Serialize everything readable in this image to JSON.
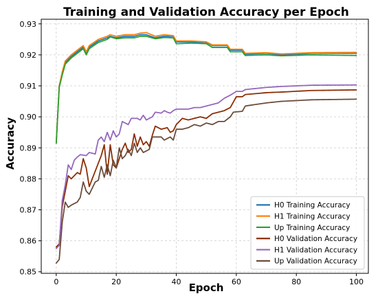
{
  "chart_data": {
    "type": "line",
    "title": "Training and Validation Accuracy per Epoch",
    "xlabel": "Epoch",
    "ylabel": "Accuracy",
    "xlim": [
      -5,
      104
    ],
    "ylim": [
      0.8495,
      0.9315
    ],
    "xticks": [
      0,
      20,
      40,
      60,
      80,
      100
    ],
    "yticks": [
      0.85,
      0.86,
      0.87,
      0.88,
      0.89,
      0.9,
      0.91,
      0.92,
      0.93
    ],
    "ytick_labels": [
      "0.85",
      "0.86",
      "0.87",
      "0.88",
      "0.89",
      "0.90",
      "0.91",
      "0.92",
      "0.93"
    ],
    "grid": true,
    "legend_position": "lower-right",
    "series": [
      {
        "name": "H0 Training Accuracy",
        "color": "#1f77b4",
        "keypoints": [
          [
            0,
            0.8915
          ],
          [
            1,
            0.91
          ],
          [
            2,
            0.914
          ],
          [
            3,
            0.9175
          ],
          [
            5,
            0.9195
          ],
          [
            7,
            0.921
          ],
          [
            9,
            0.9225
          ],
          [
            10,
            0.9205
          ],
          [
            11,
            0.9225
          ],
          [
            14,
            0.9245
          ],
          [
            17,
            0.9255
          ],
          [
            18,
            0.926
          ],
          [
            20,
            0.9255
          ],
          [
            23,
            0.926
          ],
          [
            26,
            0.926
          ],
          [
            28,
            0.9265
          ],
          [
            30,
            0.9265
          ],
          [
            33,
            0.9255
          ],
          [
            36,
            0.926
          ],
          [
            39,
            0.926
          ],
          [
            40,
            0.9242
          ],
          [
            45,
            0.9242
          ],
          [
            50,
            0.924
          ],
          [
            52,
            0.923
          ],
          [
            57,
            0.923
          ],
          [
            58,
            0.9215
          ],
          [
            62,
            0.9215
          ],
          [
            63,
            0.9202
          ],
          [
            70,
            0.9205
          ],
          [
            75,
            0.92
          ],
          [
            85,
            0.9205
          ],
          [
            100,
            0.9205
          ]
        ]
      },
      {
        "name": "H1 Training Accuracy",
        "color": "#ff7f0e",
        "keypoints": [
          [
            0,
            0.8915
          ],
          [
            1,
            0.91
          ],
          [
            2,
            0.9145
          ],
          [
            3,
            0.918
          ],
          [
            5,
            0.92
          ],
          [
            7,
            0.9215
          ],
          [
            9,
            0.923
          ],
          [
            10,
            0.921
          ],
          [
            11,
            0.923
          ],
          [
            14,
            0.925
          ],
          [
            17,
            0.926
          ],
          [
            18,
            0.9265
          ],
          [
            20,
            0.926
          ],
          [
            23,
            0.9265
          ],
          [
            26,
            0.9265
          ],
          [
            28,
            0.927
          ],
          [
            30,
            0.9272
          ],
          [
            33,
            0.926
          ],
          [
            36,
            0.9265
          ],
          [
            39,
            0.9262
          ],
          [
            40,
            0.9245
          ],
          [
            45,
            0.9245
          ],
          [
            50,
            0.9242
          ],
          [
            52,
            0.9232
          ],
          [
            57,
            0.9232
          ],
          [
            58,
            0.9218
          ],
          [
            62,
            0.9218
          ],
          [
            63,
            0.9205
          ],
          [
            70,
            0.9207
          ],
          [
            75,
            0.9203
          ],
          [
            85,
            0.9207
          ],
          [
            100,
            0.9208
          ]
        ]
      },
      {
        "name": "Up Training Accuracy",
        "color": "#2ca02c",
        "keypoints": [
          [
            0,
            0.8915
          ],
          [
            1,
            0.9095
          ],
          [
            2,
            0.9135
          ],
          [
            3,
            0.917
          ],
          [
            5,
            0.919
          ],
          [
            7,
            0.9205
          ],
          [
            9,
            0.922
          ],
          [
            10,
            0.92
          ],
          [
            11,
            0.922
          ],
          [
            14,
            0.924
          ],
          [
            17,
            0.925
          ],
          [
            18,
            0.9258
          ],
          [
            20,
            0.9252
          ],
          [
            23,
            0.9255
          ],
          [
            26,
            0.9255
          ],
          [
            28,
            0.926
          ],
          [
            30,
            0.926
          ],
          [
            33,
            0.9252
          ],
          [
            36,
            0.9256
          ],
          [
            39,
            0.9255
          ],
          [
            40,
            0.9236
          ],
          [
            45,
            0.9238
          ],
          [
            50,
            0.9236
          ],
          [
            52,
            0.9224
          ],
          [
            57,
            0.9224
          ],
          [
            58,
            0.921
          ],
          [
            62,
            0.921
          ],
          [
            63,
            0.9198
          ],
          [
            70,
            0.92
          ],
          [
            75,
            0.9197
          ],
          [
            85,
            0.92
          ],
          [
            100,
            0.9198
          ]
        ]
      },
      {
        "name": "H0 Validation Accuracy",
        "color": "#8c2d04",
        "keypoints": [
          [
            0,
            0.858
          ],
          [
            1,
            0.859
          ],
          [
            2,
            0.871
          ],
          [
            3,
            0.876
          ],
          [
            4,
            0.881
          ],
          [
            5,
            0.88
          ],
          [
            7,
            0.882
          ],
          [
            8,
            0.8815
          ],
          [
            9,
            0.8865
          ],
          [
            10,
            0.8835
          ],
          [
            11,
            0.8775
          ],
          [
            12,
            0.88
          ],
          [
            14,
            0.885
          ],
          [
            15,
            0.8875
          ],
          [
            16,
            0.891
          ],
          [
            17,
            0.8815
          ],
          [
            18,
            0.891
          ],
          [
            19,
            0.8845
          ],
          [
            20,
            0.8835
          ],
          [
            21,
            0.8865
          ],
          [
            22,
            0.8895
          ],
          [
            23,
            0.8915
          ],
          [
            24,
            0.8885
          ],
          [
            25,
            0.8895
          ],
          [
            26,
            0.8945
          ],
          [
            27,
            0.8905
          ],
          [
            28,
            0.8935
          ],
          [
            29,
            0.891
          ],
          [
            30,
            0.892
          ],
          [
            31,
            0.8905
          ],
          [
            32,
            0.894
          ],
          [
            33,
            0.897
          ],
          [
            35,
            0.896
          ],
          [
            37,
            0.8965
          ],
          [
            38,
            0.895
          ],
          [
            39,
            0.8955
          ],
          [
            40,
            0.8975
          ],
          [
            42,
            0.8995
          ],
          [
            44,
            0.899
          ],
          [
            46,
            0.8995
          ],
          [
            48,
            0.9
          ],
          [
            50,
            0.8995
          ],
          [
            52,
            0.901
          ],
          [
            54,
            0.9015
          ],
          [
            56,
            0.902
          ],
          [
            57,
            0.9025
          ],
          [
            58,
            0.903
          ],
          [
            60,
            0.9065
          ],
          [
            62,
            0.9065
          ],
          [
            63,
            0.9072
          ],
          [
            70,
            0.9078
          ],
          [
            75,
            0.908
          ],
          [
            85,
            0.9085
          ],
          [
            100,
            0.9087
          ]
        ]
      },
      {
        "name": "H1 Validation Accuracy",
        "color": "#9467bd",
        "keypoints": [
          [
            0,
            0.8575
          ],
          [
            1,
            0.8585
          ],
          [
            2,
            0.873
          ],
          [
            3,
            0.878
          ],
          [
            4,
            0.8845
          ],
          [
            5,
            0.883
          ],
          [
            6,
            0.886
          ],
          [
            7,
            0.887
          ],
          [
            8,
            0.8878
          ],
          [
            10,
            0.8875
          ],
          [
            11,
            0.8885
          ],
          [
            13,
            0.888
          ],
          [
            14,
            0.8925
          ],
          [
            15,
            0.8935
          ],
          [
            16,
            0.892
          ],
          [
            17,
            0.895
          ],
          [
            18,
            0.8925
          ],
          [
            19,
            0.8955
          ],
          [
            20,
            0.8935
          ],
          [
            21,
            0.8945
          ],
          [
            22,
            0.8985
          ],
          [
            24,
            0.8975
          ],
          [
            25,
            0.8995
          ],
          [
            27,
            0.8995
          ],
          [
            28,
            0.899
          ],
          [
            29,
            0.9005
          ],
          [
            30,
            0.899
          ],
          [
            32,
            0.9
          ],
          [
            33,
            0.9015
          ],
          [
            35,
            0.9012
          ],
          [
            36,
            0.902
          ],
          [
            37,
            0.9015
          ],
          [
            38,
            0.9012
          ],
          [
            39,
            0.902
          ],
          [
            40,
            0.9025
          ],
          [
            44,
            0.9025
          ],
          [
            46,
            0.903
          ],
          [
            48,
            0.903
          ],
          [
            50,
            0.9035
          ],
          [
            52,
            0.904
          ],
          [
            54,
            0.9045
          ],
          [
            56,
            0.906
          ],
          [
            58,
            0.907
          ],
          [
            60,
            0.9082
          ],
          [
            62,
            0.9082
          ],
          [
            63,
            0.9088
          ],
          [
            70,
            0.9095
          ],
          [
            75,
            0.9098
          ],
          [
            85,
            0.9102
          ],
          [
            100,
            0.9103
          ]
        ]
      },
      {
        "name": "Up Validation Accuracy",
        "color": "#6b4c3b",
        "keypoints": [
          [
            0,
            0.8528
          ],
          [
            1,
            0.854
          ],
          [
            2,
            0.866
          ],
          [
            3,
            0.8725
          ],
          [
            4,
            0.8708
          ],
          [
            5,
            0.8715
          ],
          [
            7,
            0.8725
          ],
          [
            8,
            0.874
          ],
          [
            9,
            0.879
          ],
          [
            10,
            0.876
          ],
          [
            11,
            0.875
          ],
          [
            12,
            0.877
          ],
          [
            13,
            0.879
          ],
          [
            14,
            0.8795
          ],
          [
            15,
            0.884
          ],
          [
            16,
            0.8805
          ],
          [
            17,
            0.8845
          ],
          [
            18,
            0.881
          ],
          [
            19,
            0.886
          ],
          [
            20,
            0.8835
          ],
          [
            21,
            0.89
          ],
          [
            22,
            0.8865
          ],
          [
            23,
            0.8875
          ],
          [
            24,
            0.8895
          ],
          [
            25,
            0.8875
          ],
          [
            26,
            0.8915
          ],
          [
            27,
            0.8885
          ],
          [
            28,
            0.89
          ],
          [
            29,
            0.8885
          ],
          [
            30,
            0.889
          ],
          [
            31,
            0.8895
          ],
          [
            32,
            0.8935
          ],
          [
            33,
            0.8935
          ],
          [
            35,
            0.8935
          ],
          [
            36,
            0.8925
          ],
          [
            37,
            0.893
          ],
          [
            38,
            0.8935
          ],
          [
            39,
            0.8925
          ],
          [
            40,
            0.896
          ],
          [
            42,
            0.896
          ],
          [
            44,
            0.8965
          ],
          [
            46,
            0.8975
          ],
          [
            48,
            0.897
          ],
          [
            50,
            0.898
          ],
          [
            52,
            0.8975
          ],
          [
            54,
            0.8985
          ],
          [
            56,
            0.8985
          ],
          [
            58,
            0.9
          ],
          [
            59,
            0.9015
          ],
          [
            62,
            0.9018
          ],
          [
            63,
            0.9035
          ],
          [
            70,
            0.9045
          ],
          [
            75,
            0.905
          ],
          [
            85,
            0.9055
          ],
          [
            100,
            0.9057
          ]
        ]
      }
    ]
  }
}
